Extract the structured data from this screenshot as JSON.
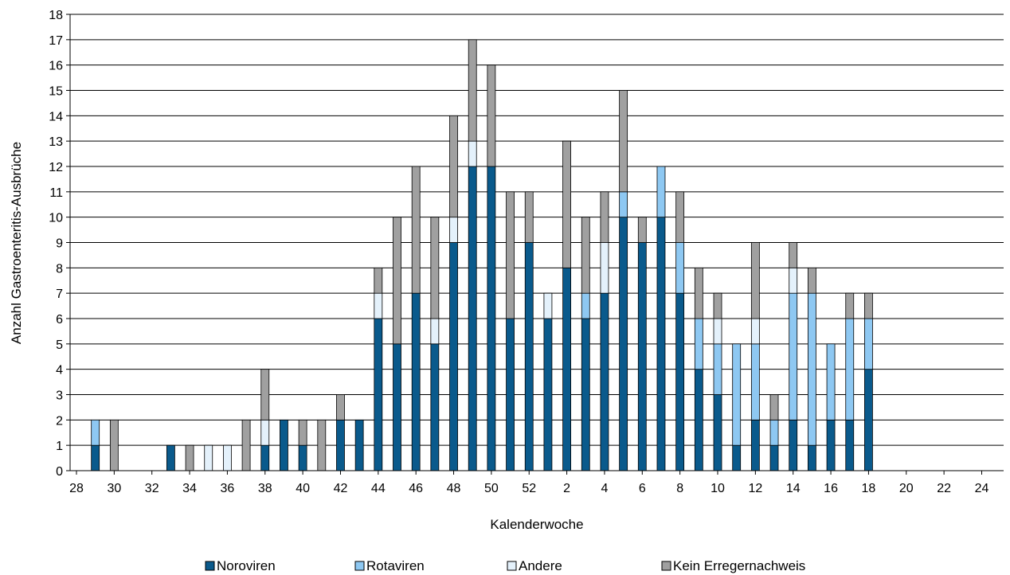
{
  "chart_data": {
    "type": "bar",
    "stacked": true,
    "xlabel": "Kalenderwoche",
    "ylabel": "Anzahl Gastroenteritis-Ausbrüche",
    "ylim": [
      0,
      18
    ],
    "yticks": [
      0,
      1,
      2,
      3,
      4,
      5,
      6,
      7,
      8,
      9,
      10,
      11,
      12,
      13,
      14,
      15,
      16,
      17,
      18
    ],
    "grid": true,
    "legend_position": "bottom",
    "categories": [
      "28",
      "29",
      "30",
      "31",
      "32",
      "33",
      "34",
      "35",
      "36",
      "37",
      "38",
      "39",
      "40",
      "41",
      "42",
      "43",
      "44",
      "45",
      "46",
      "47",
      "48",
      "49",
      "50",
      "51",
      "52",
      "1",
      "2",
      "3",
      "4",
      "5",
      "6",
      "7",
      "8",
      "9",
      "10",
      "11",
      "12",
      "13",
      "14",
      "15",
      "16",
      "17",
      "18",
      "19",
      "20",
      "21",
      "22",
      "23",
      "24",
      "25"
    ],
    "x_tick_labels": [
      "28",
      "30",
      "32",
      "34",
      "36",
      "38",
      "40",
      "42",
      "44",
      "46",
      "48",
      "50",
      "52",
      "2",
      "4",
      "6",
      "8",
      "10",
      "12",
      "14",
      "16",
      "18",
      "20",
      "22",
      "24"
    ],
    "series": [
      {
        "name": "Noroviren",
        "color": "#0a5a8c",
        "values": [
          0,
          1,
          0,
          0,
          0,
          1,
          0,
          0,
          0,
          0,
          1,
          2,
          1,
          0,
          2,
          2,
          6,
          5,
          7,
          5,
          9,
          12,
          12,
          6,
          9,
          6,
          8,
          6,
          7,
          10,
          9,
          10,
          7,
          4,
          3,
          1,
          2,
          1,
          2,
          1,
          2,
          2,
          4,
          0,
          0,
          0,
          0,
          0,
          0,
          0
        ]
      },
      {
        "name": "Rotaviren",
        "color": "#8ec8f2",
        "values": [
          0,
          1,
          0,
          0,
          0,
          0,
          0,
          0,
          0,
          0,
          0,
          0,
          0,
          0,
          0,
          0,
          0,
          0,
          0,
          0,
          0,
          0,
          0,
          0,
          0,
          0,
          0,
          1,
          0,
          1,
          0,
          2,
          2,
          2,
          2,
          4,
          3,
          1,
          5,
          6,
          3,
          4,
          2,
          0,
          0,
          0,
          0,
          0,
          0,
          0
        ]
      },
      {
        "name": "Andere",
        "color": "#e4f1fb",
        "values": [
          0,
          0,
          0,
          0,
          0,
          0,
          0,
          1,
          1,
          0,
          1,
          0,
          0,
          0,
          0,
          0,
          1,
          0,
          0,
          1,
          1,
          1,
          0,
          0,
          0,
          1,
          0,
          0,
          2,
          0,
          0,
          0,
          0,
          0,
          1,
          0,
          1,
          0,
          1,
          0,
          0,
          0,
          0,
          0,
          0,
          0,
          0,
          0,
          0,
          0
        ]
      },
      {
        "name": "Kein Erregernachweis",
        "color": "#a0a0a0",
        "values": [
          0,
          0,
          2,
          0,
          0,
          0,
          1,
          0,
          0,
          2,
          2,
          0,
          1,
          2,
          1,
          0,
          1,
          5,
          5,
          4,
          4,
          4,
          4,
          5,
          2,
          0,
          5,
          3,
          2,
          4,
          1,
          0,
          2,
          2,
          1,
          0,
          3,
          1,
          1,
          1,
          0,
          1,
          1,
          0,
          0,
          0,
          0,
          0,
          0,
          0
        ]
      }
    ]
  }
}
